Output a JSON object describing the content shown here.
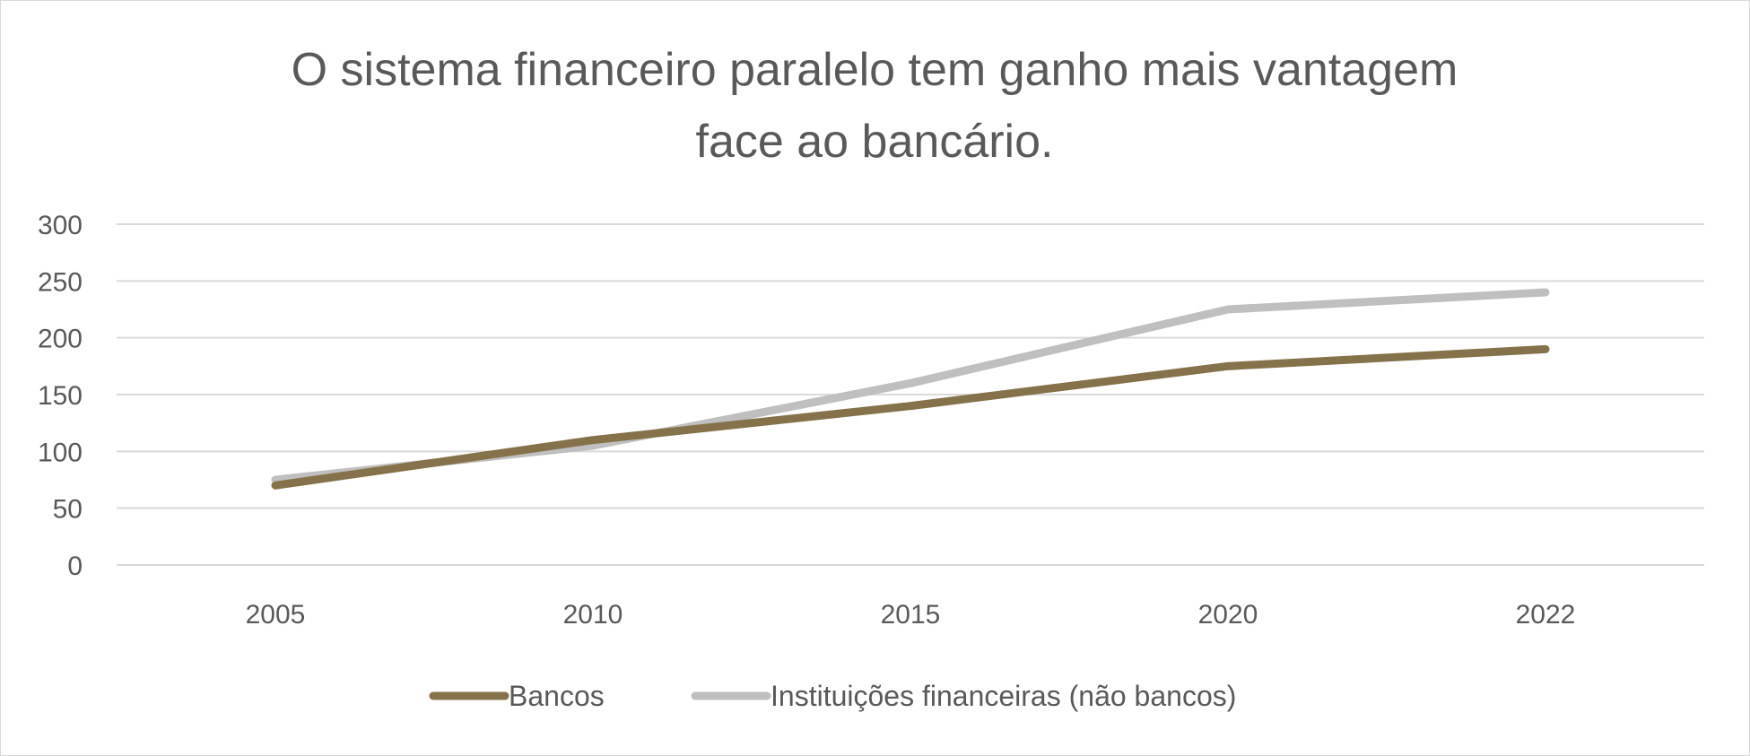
{
  "chart_data": {
    "type": "line",
    "title_lines": [
      "O sistema financeiro paralelo tem ganho mais vantagem",
      "face ao bancário."
    ],
    "categories": [
      "2005",
      "2010",
      "2015",
      "2020",
      "2022"
    ],
    "ylim": [
      0,
      300
    ],
    "yticks": [
      0,
      50,
      100,
      150,
      200,
      250,
      300
    ],
    "grid": true,
    "legend_position": "bottom",
    "series": [
      {
        "name": "Bancos",
        "values": [
          70,
          110,
          140,
          175,
          190
        ],
        "color": "#86724a"
      },
      {
        "name": "Instituições financeiras (não bancos)",
        "values": [
          75,
          105,
          160,
          225,
          240
        ],
        "color": "#bfbfbf"
      }
    ]
  }
}
